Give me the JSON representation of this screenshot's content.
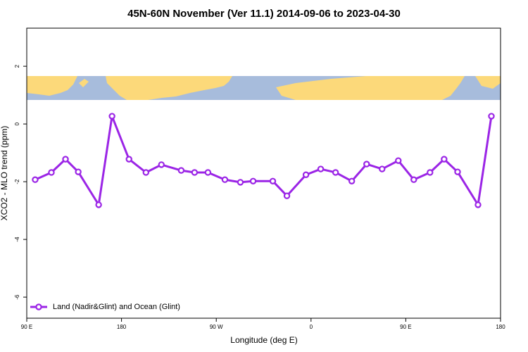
{
  "chart_data": {
    "type": "line",
    "title": "45N-60N November (Ver 11.1)   2014-09-06 to 2023-04-30",
    "x_label": "Longitude (deg E)",
    "y_label": "XCO2 - MLO trend (ppm)",
    "x": [
      98.0,
      113.4,
      126.8,
      138.9,
      158.3,
      171.0,
      187.1,
      203.2,
      217.9,
      236.7,
      249.4,
      262.1,
      278.2,
      292.9,
      305.0,
      323.7,
      337.1,
      355.2,
      369.2,
      383.3,
      398.7,
      412.8,
      427.5,
      442.9,
      457.6,
      473.0,
      486.4,
      499.2,
      518.6,
      531.3
    ],
    "series": [
      {
        "name": "Land (Nadir&Glint) and Ocean (Glint)",
        "color": "#9b25e6",
        "values": [
          -1.93,
          -1.68,
          -1.22,
          -1.66,
          -2.8,
          0.27,
          -1.22,
          -1.68,
          -1.41,
          -1.61,
          -1.68,
          -1.68,
          -1.93,
          -2.02,
          -1.98,
          -1.98,
          -2.49,
          -1.76,
          -1.56,
          -1.68,
          -1.98,
          -1.39,
          -1.56,
          -1.27,
          -1.93,
          -1.68,
          -1.22,
          -1.66,
          -2.8,
          0.27
        ]
      }
    ],
    "xlim": [
      90,
      540
    ],
    "xticks": [
      {
        "value": 90,
        "label": "90 E"
      },
      180,
      {
        "value": 270,
        "label": "90 W"
      },
      {
        "value": 360,
        "label": "0"
      },
      {
        "value": 450,
        "label": "90 E"
      },
      {
        "value": 540,
        "label": "180"
      }
    ],
    "ylim": [
      -6.73,
      3.32
    ],
    "yticks": [
      -6,
      -4,
      -2,
      0,
      2
    ],
    "legend": "bottom-left"
  }
}
